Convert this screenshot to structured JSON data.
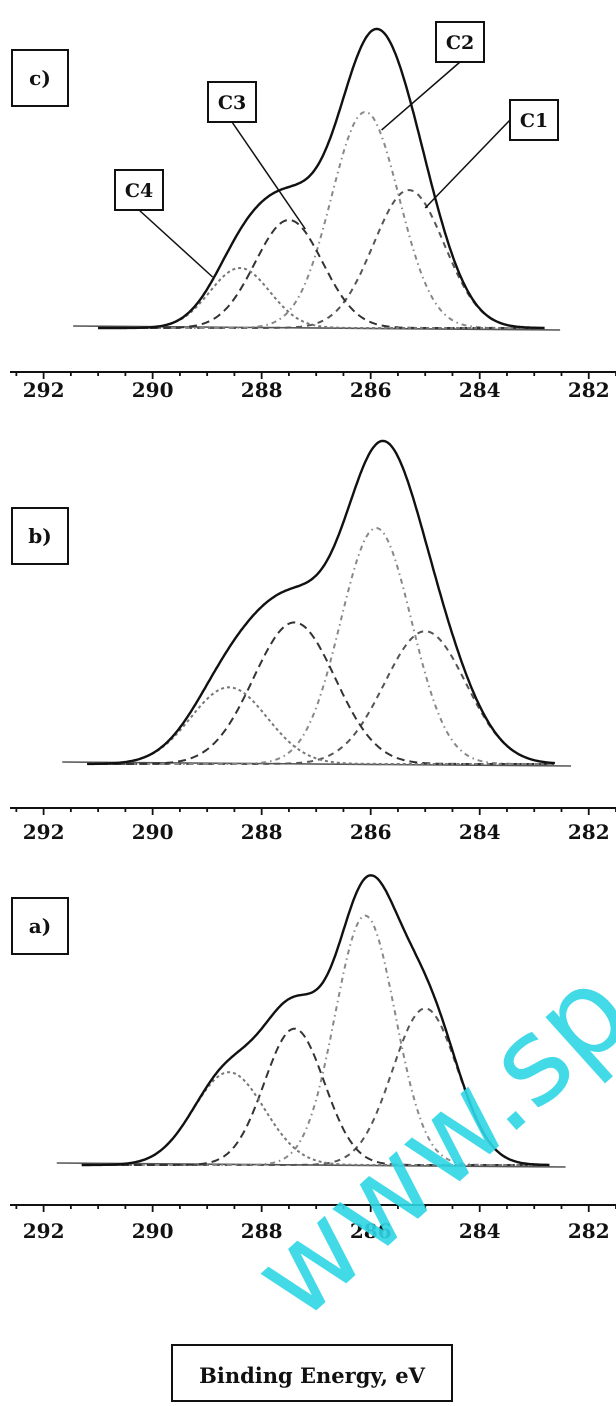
{
  "chart_data": [
    {
      "type": "line",
      "panel_label": "c)",
      "xlabel": "",
      "xlim": [
        292.8,
        281.5
      ],
      "x_ticks": [
        292,
        290,
        288,
        286,
        284,
        282
      ],
      "peaks": [
        {
          "name": "C1",
          "center": 285.3,
          "height": 0.46,
          "width": 0.65
        },
        {
          "name": "C2",
          "center": 286.1,
          "height": 0.72,
          "width": 0.62
        },
        {
          "name": "C3",
          "center": 287.5,
          "height": 0.36,
          "width": 0.62
        },
        {
          "name": "C4",
          "center": 288.4,
          "height": 0.2,
          "width": 0.55
        }
      ],
      "envelope_range": [
        291.0,
        282.8
      ]
    },
    {
      "type": "line",
      "panel_label": "b)",
      "xlabel": "",
      "xlim": [
        292.8,
        281.5
      ],
      "x_ticks": [
        292,
        290,
        288,
        286,
        284,
        282
      ],
      "peaks": [
        {
          "name": "C1",
          "center": 285.0,
          "height": 0.45,
          "width": 0.75
        },
        {
          "name": "C2",
          "center": 285.9,
          "height": 0.8,
          "width": 0.65
        },
        {
          "name": "C3",
          "center": 287.4,
          "height": 0.48,
          "width": 0.75
        },
        {
          "name": "C4",
          "center": 288.6,
          "height": 0.26,
          "width": 0.7
        }
      ],
      "envelope_range": [
        291.2,
        282.6
      ]
    },
    {
      "type": "line",
      "panel_label": "a)",
      "xlabel": "Binding Energy, eV",
      "xlim": [
        292.8,
        281.5
      ],
      "x_ticks": [
        292,
        290,
        288,
        286,
        284,
        282
      ],
      "peaks": [
        {
          "name": "C1",
          "center": 285.0,
          "height": 0.54,
          "width": 0.6
        },
        {
          "name": "C2",
          "center": 286.1,
          "height": 0.86,
          "width": 0.55
        },
        {
          "name": "C3",
          "center": 287.4,
          "height": 0.47,
          "width": 0.55
        },
        {
          "name": "C4",
          "center": 288.6,
          "height": 0.32,
          "width": 0.65
        }
      ],
      "envelope_range": [
        291.3,
        282.7
      ]
    }
  ],
  "annotations": {
    "C1": "C1",
    "C2": "C2",
    "C3": "C3",
    "C4": "C4"
  },
  "watermark": "www.sp"
}
